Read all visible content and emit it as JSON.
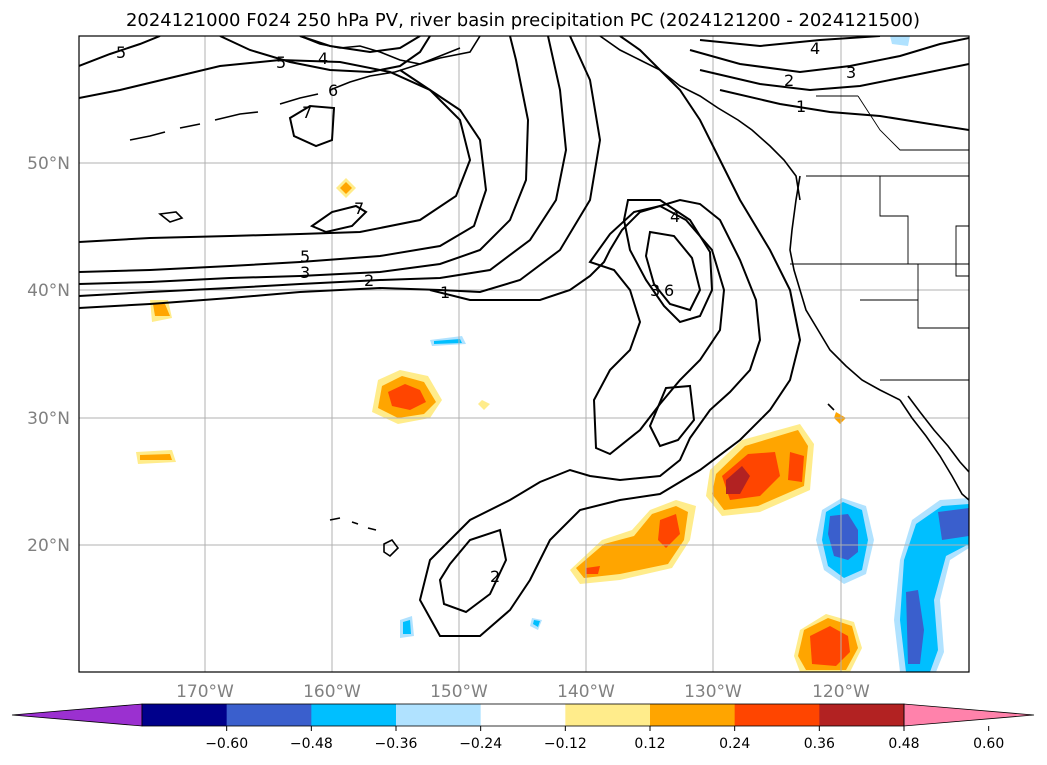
{
  "title": "2024121000 F024 250 hPa PV, river basin precipitation PC (2024121200 - 2024121500)",
  "lat_labels": [
    "50°N",
    "40°N",
    "30°N",
    "20°N"
  ],
  "lon_labels": [
    "170°W",
    "160°W",
    "150°W",
    "140°W",
    "130°W",
    "120°W"
  ],
  "pv_contour_labels": [
    "5",
    "4",
    "5",
    "6",
    "7",
    "7",
    "5",
    "3",
    "2",
    "1",
    "4",
    "3",
    "6",
    "2",
    "4",
    "3",
    "2",
    "1"
  ],
  "colorbar": {
    "tick_labels": [
      "−0.60",
      "−0.48",
      "−0.36",
      "−0.24",
      "−0.12",
      "0.12",
      "0.24",
      "0.36",
      "0.48",
      "0.60"
    ],
    "colors": [
      "#9b30d0",
      "#00008b",
      "#3a5fcd",
      "#00bfff",
      "#b0e2ff",
      "#ffffff",
      "#ffec8b",
      "#ffa500",
      "#ff4500",
      "#b22222",
      "#ff82ab"
    ]
  }
}
